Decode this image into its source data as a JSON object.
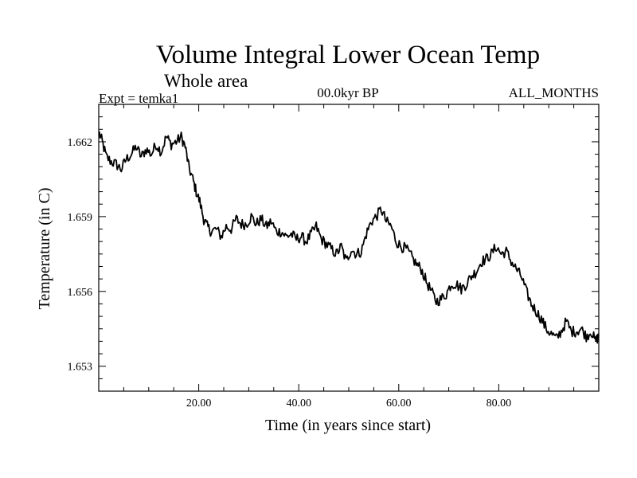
{
  "chart_data": {
    "type": "line",
    "title": "Volume Integral Lower Ocean Temp",
    "subtitle": "Whole area",
    "experiment_label": "Expt = temka1",
    "period_label": "00.0kyr BP",
    "months_label": "ALL_MONTHS",
    "xlabel": "Time (in years since start)",
    "ylabel": "Temperature (in C)",
    "xlim": [
      0,
      100
    ],
    "ylim": [
      1.652,
      1.6635
    ],
    "x_ticks": [
      20,
      40,
      60,
      80
    ],
    "x_tick_labels": [
      "20.00",
      "40.00",
      "60.00",
      "80.00"
    ],
    "y_ticks": [
      1.653,
      1.656,
      1.659,
      1.662
    ],
    "y_tick_labels": [
      "1.653",
      "1.656",
      "1.659",
      "1.662"
    ],
    "grid": false,
    "series": [
      {
        "name": "temka1",
        "x": [
          0,
          0.7,
          1.5,
          2.5,
          3.5,
          4.5,
          5.5,
          6.5,
          7.5,
          8.5,
          9.5,
          10.5,
          11.5,
          12.5,
          13.5,
          14.5,
          15.5,
          16.5,
          17.3,
          18,
          18.8,
          19.5,
          20.2,
          21,
          21.7,
          22.5,
          23.5,
          24.5,
          25.5,
          26.5,
          27.5,
          28.5,
          29.5,
          30.5,
          31.5,
          32.5,
          33.5,
          34.5,
          35.5,
          36.5,
          37.5,
          38.5,
          39.5,
          40.5,
          41.5,
          42.5,
          43.5,
          44.5,
          45.5,
          46.5,
          47.5,
          48.5,
          49.5,
          50.5,
          51.5,
          52.5,
          53.5,
          54.5,
          55.5,
          56.5,
          57.5,
          58.5,
          59.5,
          60.5,
          61.5,
          62.5,
          63.5,
          64.5,
          65.5,
          66.5,
          67.5,
          68.5,
          69.5,
          70.5,
          71.5,
          72.5,
          73.5,
          74.5,
          75.5,
          76.5,
          77.5,
          78.5,
          79.5,
          80.5,
          81.5,
          82.5,
          83.5,
          84.5,
          85.5,
          86.5,
          87.5,
          88.5,
          89.5,
          90.5,
          91.5,
          92.5,
          93.5,
          94.5,
          95.5,
          96.5,
          97.5,
          98.5,
          99.3,
          100
        ],
        "values": [
          1.6624,
          1.662,
          1.6614,
          1.6612,
          1.6611,
          1.6609,
          1.6613,
          1.6615,
          1.6618,
          1.6614,
          1.6617,
          1.6615,
          1.6619,
          1.6616,
          1.6622,
          1.6619,
          1.662,
          1.6622,
          1.6618,
          1.661,
          1.6605,
          1.66,
          1.6596,
          1.6589,
          1.6586,
          1.6584,
          1.6585,
          1.6582,
          1.6586,
          1.6585,
          1.6589,
          1.6587,
          1.6587,
          1.659,
          1.6587,
          1.6589,
          1.6586,
          1.6588,
          1.6584,
          1.6584,
          1.6582,
          1.6583,
          1.6581,
          1.6582,
          1.658,
          1.6583,
          1.6586,
          1.6581,
          1.6579,
          1.6577,
          1.6575,
          1.6578,
          1.6572,
          1.6577,
          1.6575,
          1.6576,
          1.6583,
          1.6588,
          1.659,
          1.6593,
          1.6588,
          1.6586,
          1.658,
          1.6578,
          1.6577,
          1.6574,
          1.6571,
          1.6569,
          1.6564,
          1.656,
          1.6556,
          1.6557,
          1.6559,
          1.6563,
          1.6563,
          1.6561,
          1.6563,
          1.6566,
          1.6568,
          1.6572,
          1.6573,
          1.6575,
          1.6578,
          1.6575,
          1.6576,
          1.6572,
          1.6569,
          1.6566,
          1.656,
          1.6555,
          1.6552,
          1.6549,
          1.6545,
          1.6543,
          1.6541,
          1.6544,
          1.6548,
          1.6544,
          1.6544,
          1.6545,
          1.6542,
          1.6544,
          1.654,
          1.6542
        ],
        "color": "#000000"
      }
    ]
  }
}
